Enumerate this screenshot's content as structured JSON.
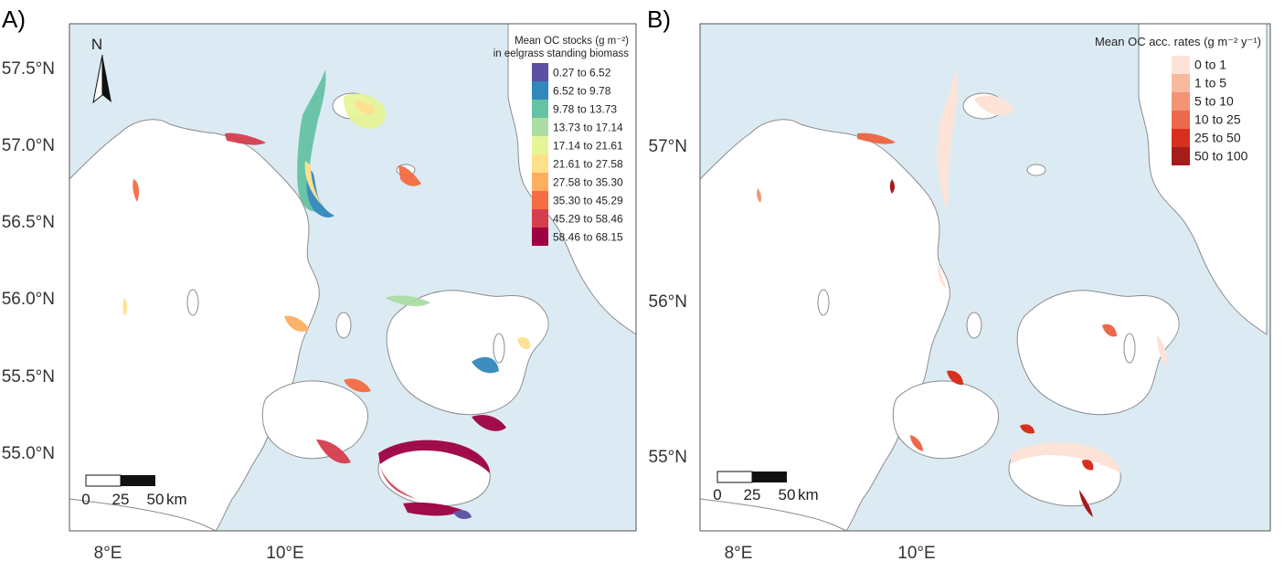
{
  "panels": [
    {
      "label": "A)",
      "lat_ticks": [
        "57.5°N",
        "57.0°N",
        "56.5°N",
        "56.0°N",
        "55.5°N",
        "55.0°N"
      ],
      "lon_ticks": [
        "8°E",
        "10°E"
      ],
      "north_label": "N",
      "scale_labels": [
        "0",
        "25",
        "50",
        "km"
      ],
      "legend": {
        "title_line1": "Mean OC stocks (g m⁻²)",
        "title_line2": "in eelgrass standing biomass",
        "items": [
          {
            "label": "0.27 to 6.52",
            "color": "#5e4fa2"
          },
          {
            "label": "6.52 to 9.78",
            "color": "#3288bd"
          },
          {
            "label": "9.78 to 13.73",
            "color": "#66c2a5"
          },
          {
            "label": "13.73 to 17.14",
            "color": "#abdda4"
          },
          {
            "label": "17.14 to 21.61",
            "color": "#e6f598"
          },
          {
            "label": "21.61 to 27.58",
            "color": "#fee08b"
          },
          {
            "label": "27.58 to 35.30",
            "color": "#fdae61"
          },
          {
            "label": "35.30 to 45.29",
            "color": "#f46d43"
          },
          {
            "label": "45.29 to 58.46",
            "color": "#d53e4f"
          },
          {
            "label": "58.46 to 68.15",
            "color": "#9e0142"
          }
        ]
      }
    },
    {
      "label": "B)",
      "lat_ticks": [
        "57°N",
        "56°N",
        "55°N"
      ],
      "lon_ticks": [
        "8°E",
        "10°E"
      ],
      "scale_labels": [
        "0",
        "25",
        "50",
        "km"
      ],
      "legend": {
        "title_line1": "Mean OC acc. rates (g m⁻² y⁻¹)",
        "items": [
          {
            "label": "0 to 1",
            "color": "#fde3d7"
          },
          {
            "label": "1 to 5",
            "color": "#f9b99f"
          },
          {
            "label": "5 to 10",
            "color": "#f49475"
          },
          {
            "label": "10 to 25",
            "color": "#ec6a4b"
          },
          {
            "label": "25 to 50",
            "color": "#d8301f"
          },
          {
            "label": "50 to 100",
            "color": "#a51c1b"
          }
        ]
      }
    }
  ],
  "colors": {
    "sea": "#dcebf3",
    "land": "#ffffff",
    "coast": "#8c8c8c",
    "frame": "#555555"
  }
}
